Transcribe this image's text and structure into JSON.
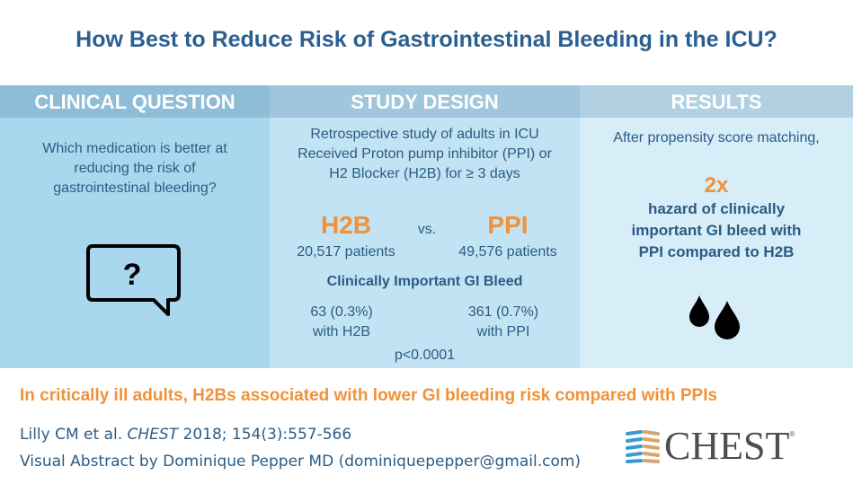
{
  "title": "How Best to Reduce Risk of Gastrointestinal Bleeding in the ICU?",
  "clinical_question": {
    "header": "CLINICAL QUESTION",
    "lines": [
      "Which medication is better at",
      "reducing the risk of",
      "gastrointestinal bleeding?"
    ],
    "icon": "speech-bubble-question-icon",
    "icon_glyph": "?"
  },
  "study_design": {
    "header": "STUDY DESIGN",
    "lines": [
      "Retrospective study of adults in ICU",
      "Received Proton pump inhibitor (PPI) or",
      "H2 Blocker (H2B) for ≥ 3 days"
    ],
    "arm1": {
      "name": "H2B",
      "patients": "20,517 patients",
      "bleed": "63 (0.3%)",
      "bleed_label": "with H2B"
    },
    "vs": "vs.",
    "arm2": {
      "name": "PPI",
      "patients": "49,576 patients",
      "bleed": "361 (0.7%)",
      "bleed_label": "with PPI"
    },
    "outcome": "Clinically Important GI Bleed",
    "p_value": "p<0.0001"
  },
  "results": {
    "header": "RESULTS",
    "intro": "After propensity score matching,",
    "big": "2x",
    "lines": [
      "hazard of clinically",
      "important GI bleed with",
      "PPI compared to H2B"
    ],
    "icon": "blood-drops-icon"
  },
  "conclusion": "In critically ill adults, H2Bs associated with lower GI bleeding risk compared with PPIs",
  "citation": {
    "authors": "Lilly CM et al. ",
    "journal": "CHEST",
    "details": " 2018; 154(3):557-566"
  },
  "credit": "Visual Abstract by Dominique Pepper MD (dominiquepepper@gmail.com)",
  "logo": {
    "text": "CHEST",
    "mark": "®"
  },
  "colors": {
    "orange": "#f0923a",
    "blue_text": "#2b5c84",
    "col1": "#a9d8ee",
    "col2": "#c1e3f3",
    "col3": "#d7edf8"
  }
}
